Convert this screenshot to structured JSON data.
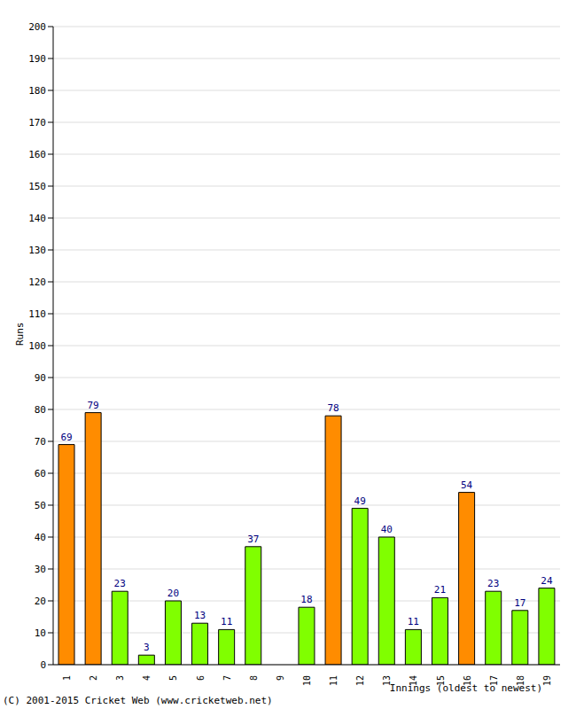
{
  "chart_data": {
    "type": "bar",
    "x_label": "Innings (oldest to newest)",
    "y_label": "Runs",
    "annotations": [
      "(C) 2001-2015 Cricket Web (www.cricketweb.net)"
    ],
    "categories": [
      "1",
      "2",
      "3",
      "4",
      "5",
      "6",
      "7",
      "8",
      "9",
      "10",
      "11",
      "12",
      "13",
      "14",
      "15",
      "16",
      "17",
      "18",
      "19"
    ],
    "values": [
      69,
      79,
      23,
      3,
      20,
      13,
      11,
      37,
      0,
      18,
      78,
      49,
      40,
      11,
      21,
      54,
      23,
      17,
      24
    ],
    "colors": [
      "#ff8c00",
      "#ff8c00",
      "#80ff00",
      "#80ff00",
      "#80ff00",
      "#80ff00",
      "#80ff00",
      "#80ff00",
      "#80ff00",
      "#80ff00",
      "#ff8c00",
      "#80ff00",
      "#80ff00",
      "#80ff00",
      "#80ff00",
      "#ff8c00",
      "#80ff00",
      "#80ff00",
      "#80ff00"
    ],
    "ylim": [
      0,
      200
    ],
    "yticks": [
      0,
      10,
      20,
      30,
      40,
      50,
      60,
      70,
      80,
      90,
      100,
      110,
      120,
      130,
      140,
      150,
      160,
      170,
      180,
      190,
      200
    ],
    "grid": true,
    "data_labels": true
  }
}
